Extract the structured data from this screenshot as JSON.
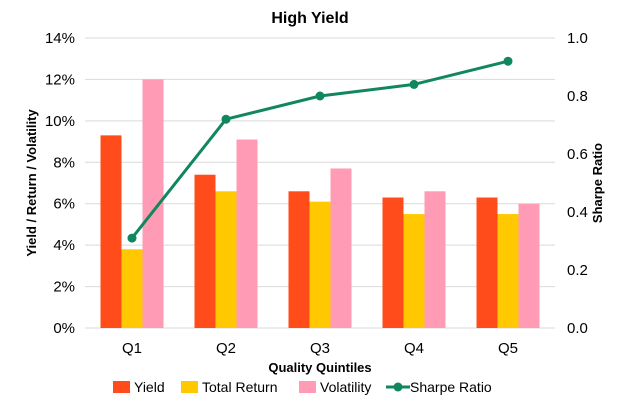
{
  "chart_data": {
    "type": "bar",
    "title": "High Yield",
    "xlabel": "Quality Quintiles",
    "ylabel": "Yield / Return / Volatility",
    "y2label": "Sharpe Ratio",
    "categories": [
      "Q1",
      "Q2",
      "Q3",
      "Q4",
      "Q5"
    ],
    "ylim": [
      0,
      14
    ],
    "y_ticks": [
      "0%",
      "2%",
      "4%",
      "6%",
      "8%",
      "10%",
      "12%",
      "14%"
    ],
    "y_tick_values": [
      0,
      2,
      4,
      6,
      8,
      10,
      12,
      14
    ],
    "y2lim": [
      0,
      1.0
    ],
    "y2_ticks": [
      "0.0",
      "0.2",
      "0.4",
      "0.6",
      "0.8",
      "1.0"
    ],
    "y2_tick_values": [
      0,
      0.2,
      0.4,
      0.6,
      0.8,
      1.0
    ],
    "grid": true,
    "legend_position": "bottom",
    "series": [
      {
        "name": "Yield",
        "type": "bar",
        "axis": "left",
        "color": "#ff4c1a",
        "values": [
          9.3,
          7.4,
          6.6,
          6.3,
          6.3
        ]
      },
      {
        "name": "Total Return",
        "type": "bar",
        "axis": "left",
        "color": "#ffc800",
        "values": [
          3.8,
          6.6,
          6.1,
          5.5,
          5.5
        ]
      },
      {
        "name": "Volatility",
        "type": "bar",
        "axis": "left",
        "color": "#ff9bb5",
        "values": [
          12.0,
          9.1,
          7.7,
          6.6,
          6.0
        ]
      },
      {
        "name": "Sharpe Ratio",
        "type": "line",
        "axis": "right",
        "color": "#10875f",
        "values": [
          0.31,
          0.72,
          0.8,
          0.84,
          0.92
        ]
      }
    ]
  }
}
